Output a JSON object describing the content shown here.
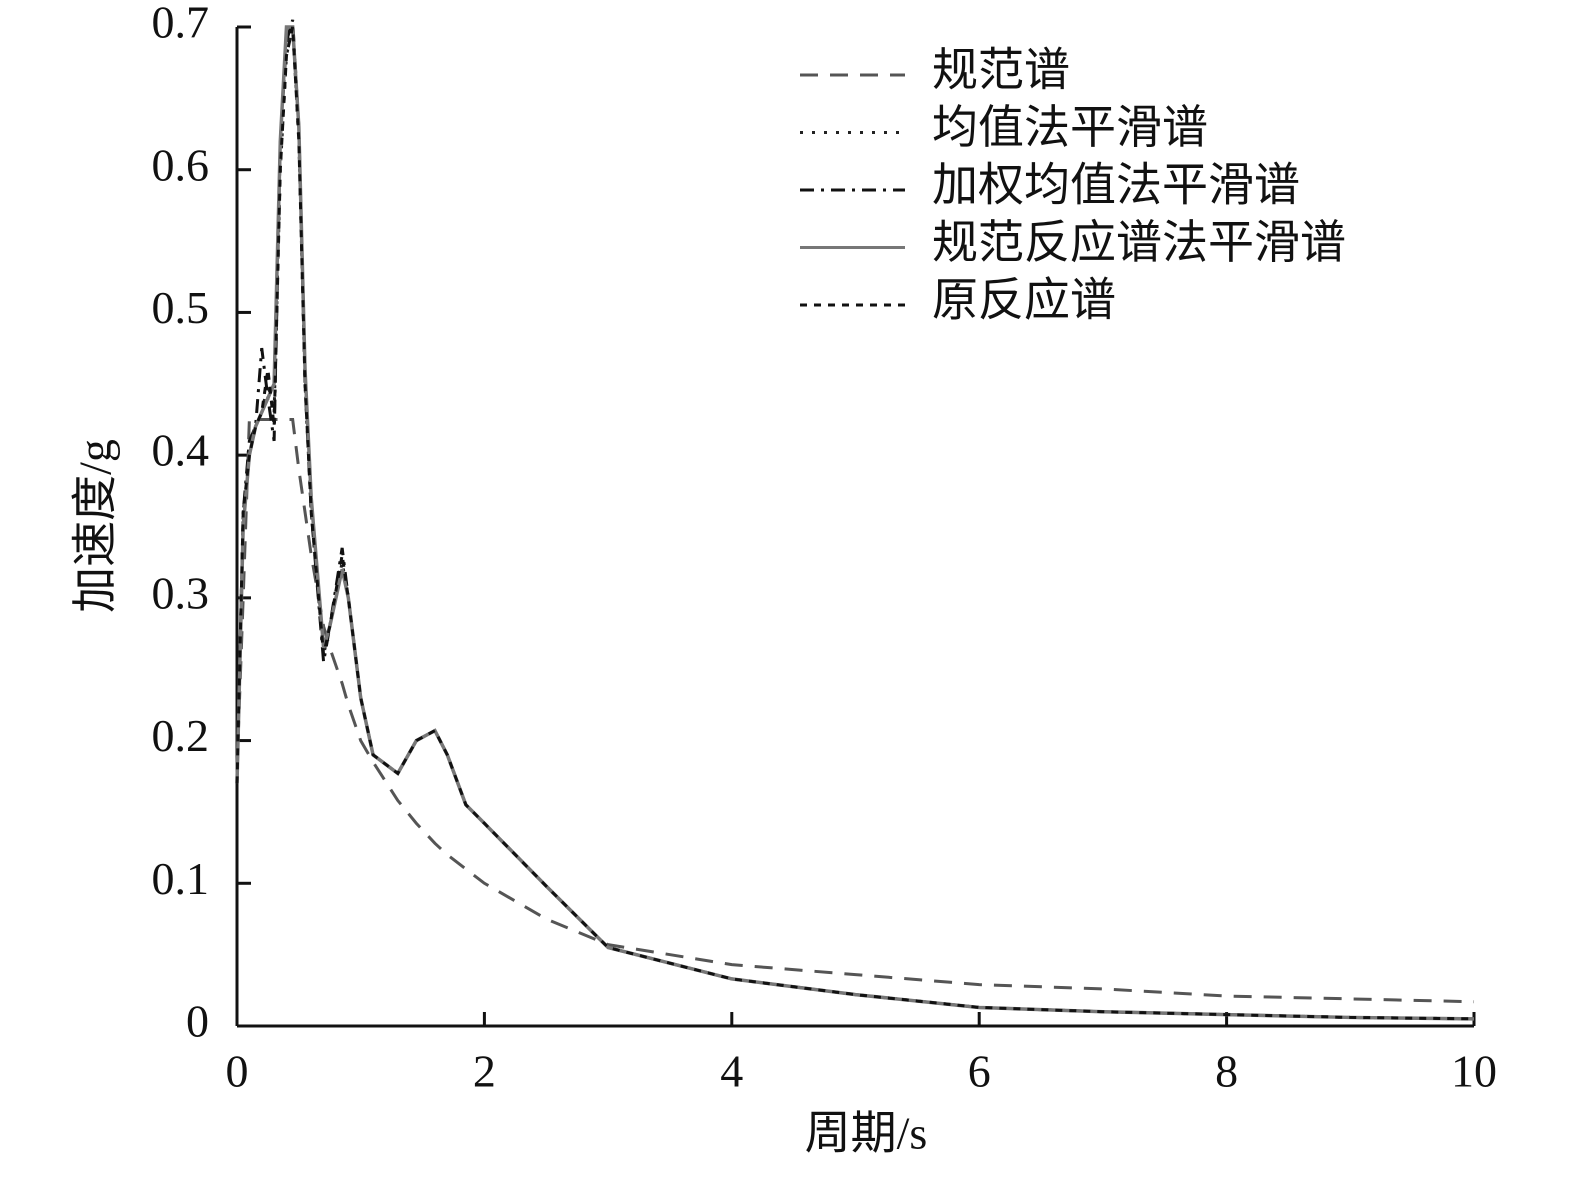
{
  "chart_data": {
    "type": "line",
    "xlabel": "周期/s",
    "ylabel": "加速度/g",
    "xlim": [
      0,
      10
    ],
    "ylim": [
      0,
      0.7
    ],
    "xticks": [
      0,
      2,
      4,
      6,
      8,
      10
    ],
    "yticks": [
      0,
      0.1,
      0.2,
      0.3,
      0.4,
      0.5,
      0.6,
      0.7
    ],
    "legend": "upper right",
    "x": [
      0,
      0.05,
      0.1,
      0.15,
      0.2,
      0.25,
      0.3,
      0.35,
      0.4,
      0.45,
      0.5,
      0.55,
      0.6,
      0.7,
      0.75,
      0.85,
      0.9,
      1.0,
      1.1,
      1.3,
      1.45,
      1.6,
      1.7,
      1.85,
      2.0,
      2.5,
      3.0,
      4,
      5,
      6,
      7,
      8,
      9,
      10
    ],
    "series": [
      {
        "name": "规范谱",
        "color": "#555555",
        "line_style": "dashed",
        "values": [
          0.18,
          0.3,
          0.425,
          0.425,
          0.425,
          0.425,
          0.425,
          0.425,
          0.425,
          0.425,
          0.39,
          0.36,
          0.33,
          0.28,
          0.265,
          0.24,
          0.225,
          0.2,
          0.185,
          0.158,
          0.142,
          0.128,
          0.12,
          0.11,
          0.1,
          0.075,
          0.057,
          0.043,
          0.036,
          0.029,
          0.026,
          0.021,
          0.019,
          0.017
        ]
      },
      {
        "name": "均值法平滑谱",
        "color": "#222222",
        "line_style": "dotted",
        "values": [
          0.17,
          0.36,
          0.4,
          0.42,
          0.43,
          0.45,
          0.43,
          0.6,
          0.68,
          0.7,
          0.62,
          0.45,
          0.36,
          0.26,
          0.28,
          0.325,
          0.3,
          0.23,
          0.19,
          0.177,
          0.2,
          0.207,
          0.19,
          0.155,
          0.142,
          0.098,
          0.055,
          0.033,
          0.022,
          0.013,
          0.01,
          0.008,
          0.006,
          0.005
        ]
      },
      {
        "name": "加权均值法平滑谱",
        "color": "#111111",
        "line_style": "dashdot",
        "values": [
          0.17,
          0.36,
          0.41,
          0.42,
          0.475,
          0.44,
          0.41,
          0.62,
          0.69,
          0.705,
          0.63,
          0.45,
          0.36,
          0.255,
          0.28,
          0.335,
          0.3,
          0.23,
          0.19,
          0.177,
          0.2,
          0.207,
          0.19,
          0.155,
          0.142,
          0.098,
          0.055,
          0.033,
          0.022,
          0.013,
          0.01,
          0.008,
          0.006,
          0.005
        ]
      },
      {
        "name": "规范反应谱法平滑谱",
        "color": "#777777",
        "line_style": "solid",
        "values": [
          0.17,
          0.35,
          0.4,
          0.42,
          0.43,
          0.44,
          0.45,
          0.62,
          0.7,
          0.7,
          0.63,
          0.46,
          0.37,
          0.265,
          0.28,
          0.32,
          0.3,
          0.23,
          0.19,
          0.177,
          0.2,
          0.207,
          0.19,
          0.155,
          0.142,
          0.098,
          0.055,
          0.033,
          0.022,
          0.013,
          0.01,
          0.008,
          0.006,
          0.005
        ]
      },
      {
        "name": "原反应谱",
        "color": "#111111",
        "line_style": "short-dashed",
        "values": [
          0.17,
          0.36,
          0.4,
          0.42,
          0.43,
          0.46,
          0.42,
          0.6,
          0.68,
          0.7,
          0.62,
          0.45,
          0.36,
          0.26,
          0.28,
          0.33,
          0.3,
          0.23,
          0.19,
          0.177,
          0.2,
          0.207,
          0.19,
          0.155,
          0.142,
          0.098,
          0.055,
          0.033,
          0.022,
          0.013,
          0.01,
          0.008,
          0.006,
          0.005
        ]
      }
    ]
  }
}
